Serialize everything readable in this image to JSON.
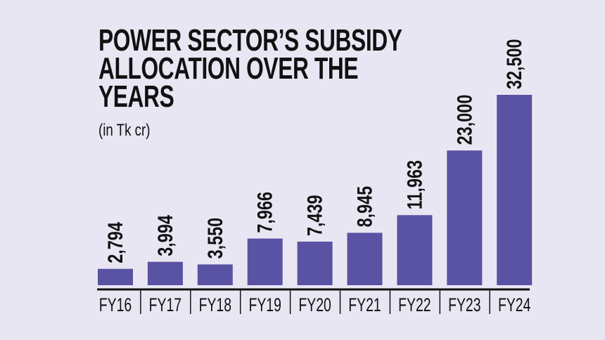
{
  "chart_data": {
    "type": "bar",
    "title_lines": [
      "POWER SECTOR’S SUBSIDY",
      "ALLOCATION OVER THE",
      "YEARS"
    ],
    "subtitle": "(in Tk cr)",
    "categories": [
      "FY16",
      "FY17",
      "FY18",
      "FY19",
      "FY20",
      "FY21",
      "FY22",
      "FY23",
      "FY24"
    ],
    "values": [
      2794,
      3994,
      3550,
      7966,
      7439,
      8945,
      11963,
      23000,
      32500
    ],
    "value_labels": [
      "2,794",
      "3,994",
      "3,550",
      "7,966",
      "7,439",
      "8,945",
      "11,963",
      "23,000",
      "32,500"
    ],
    "xlabel": "",
    "ylabel": "",
    "ylim": [
      0,
      32500
    ],
    "grid": false,
    "colors": {
      "bar": "#5a52a3",
      "background": "#e9e6f3",
      "text": "#111111"
    }
  }
}
